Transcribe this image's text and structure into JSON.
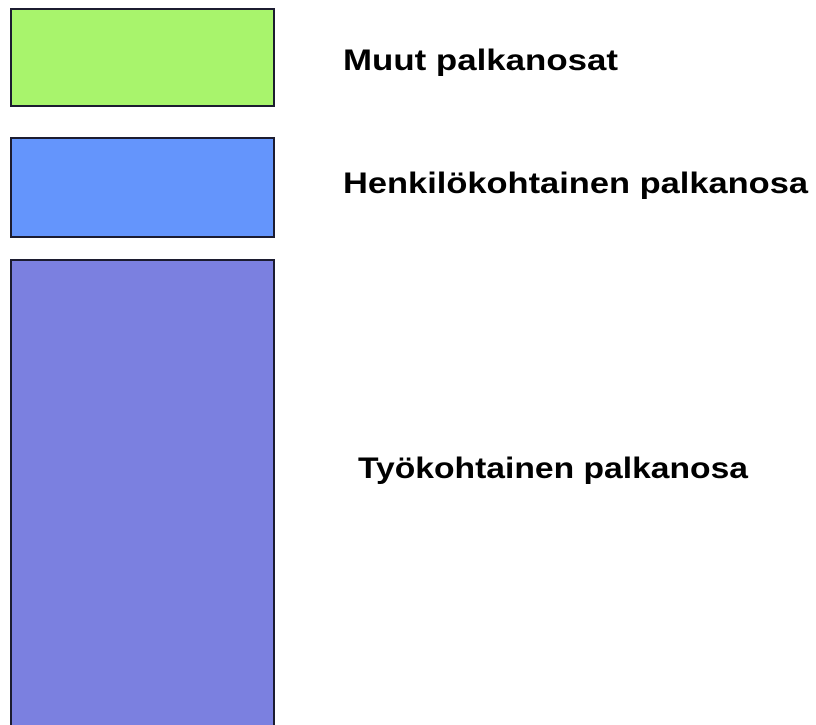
{
  "items": [
    {
      "label": "Muut palkanosat"
    },
    {
      "label": "Henkilökohtainen palkanosa"
    },
    {
      "label": "Työkohtainen palkanosa"
    }
  ]
}
